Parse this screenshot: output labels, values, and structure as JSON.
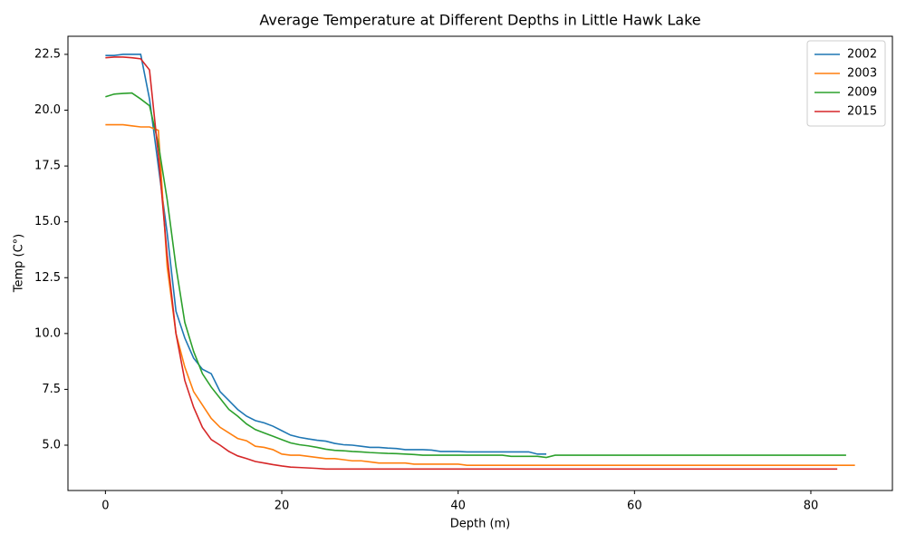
{
  "chart_data": {
    "type": "line",
    "title": "Average Temperature at Different Depths in Little Hawk Lake",
    "x_label": "Depth (m)",
    "y_label": "Temp (C°)",
    "xlim": [
      -4.25,
      89.25
    ],
    "ylim": [
      2.97,
      23.31
    ],
    "xticks": [
      0,
      20,
      40,
      60,
      80
    ],
    "yticks": [
      {
        "value": 5,
        "label": "5.0"
      },
      7.5,
      {
        "value": 10,
        "label": "10.0"
      },
      12.5,
      {
        "value": 15,
        "label": "15.0"
      },
      17.5,
      {
        "value": 20,
        "label": "20.0"
      },
      22.5
    ],
    "grid": false,
    "legend": "upper right",
    "series": [
      {
        "name": "2002",
        "color": "#1f77b4",
        "x_start": 0,
        "values": [
          22.45,
          22.45,
          22.5,
          22.5,
          22.5,
          20.5,
          17.5,
          14.5,
          11,
          9.8,
          8.9,
          8.4,
          8.2,
          7.4,
          7.0,
          6.6,
          6.3,
          6.1,
          6.0,
          5.85,
          5.65,
          5.45,
          5.35,
          5.28,
          5.22,
          5.18,
          5.08,
          5.02,
          5.0,
          4.95,
          4.9,
          4.9,
          4.87,
          4.85,
          4.8,
          4.8,
          4.8,
          4.78,
          4.72,
          4.72,
          4.72,
          4.7,
          4.7,
          4.7,
          4.7,
          4.7,
          4.7,
          4.7,
          4.7,
          4.6,
          4.6
        ]
      },
      {
        "name": "2003",
        "color": "#ff7f0e",
        "x_start": 0,
        "values": [
          19.35,
          19.35,
          19.35,
          19.3,
          19.25,
          19.25,
          19.1,
          13,
          10,
          8.5,
          7.4,
          6.8,
          6.2,
          5.8,
          5.55,
          5.3,
          5.2,
          4.95,
          4.9,
          4.8,
          4.6,
          4.55,
          4.55,
          4.5,
          4.45,
          4.4,
          4.4,
          4.35,
          4.3,
          4.3,
          4.25,
          4.2,
          4.2,
          4.2,
          4.2,
          4.15,
          4.15,
          4.15,
          4.15,
          4.15,
          4.15,
          4.1,
          4.1,
          4.1,
          4.1,
          4.1,
          4.1,
          4.1,
          4.1,
          4.1,
          4.1,
          4.1,
          4.1,
          4.1,
          4.1,
          4.1,
          4.1,
          4.1,
          4.1,
          4.1,
          4.1,
          4.1,
          4.1,
          4.1,
          4.1,
          4.1,
          4.1,
          4.1,
          4.1,
          4.1,
          4.1,
          4.1,
          4.1,
          4.1,
          4.1,
          4.1,
          4.1,
          4.1,
          4.1,
          4.1,
          4.1,
          4.1,
          4.1,
          4.1,
          4.1,
          4.1
        ]
      },
      {
        "name": "2009",
        "color": "#2ca02c",
        "x_start": 0,
        "values": [
          20.6,
          20.72,
          20.75,
          20.77,
          20.5,
          20.2,
          18.5,
          16,
          13,
          10.5,
          9.2,
          8.2,
          7.6,
          7.1,
          6.6,
          6.3,
          5.95,
          5.7,
          5.55,
          5.4,
          5.25,
          5.1,
          5.02,
          4.97,
          4.9,
          4.82,
          4.77,
          4.75,
          4.72,
          4.7,
          4.67,
          4.65,
          4.63,
          4.62,
          4.6,
          4.58,
          4.55,
          4.55,
          4.55,
          4.55,
          4.55,
          4.55,
          4.55,
          4.55,
          4.55,
          4.55,
          4.5,
          4.5,
          4.5,
          4.5,
          4.45,
          4.55,
          4.55,
          4.55,
          4.55,
          4.55,
          4.55,
          4.55,
          4.55,
          4.55,
          4.55,
          4.55,
          4.55,
          4.55,
          4.55,
          4.55,
          4.55,
          4.55,
          4.55,
          4.55,
          4.55,
          4.55,
          4.55,
          4.55,
          4.55,
          4.55,
          4.55,
          4.55,
          4.55,
          4.55,
          4.55,
          4.55,
          4.55,
          4.55,
          4.55
        ]
      },
      {
        "name": "2015",
        "color": "#d62728",
        "x_start": 0,
        "values": [
          22.35,
          22.38,
          22.38,
          22.35,
          22.3,
          21.8,
          18,
          13.5,
          10,
          7.9,
          6.7,
          5.8,
          5.25,
          5.0,
          4.72,
          4.52,
          4.4,
          4.27,
          4.2,
          4.13,
          4.07,
          4.02,
          4.0,
          3.98,
          3.96,
          3.93,
          3.93,
          3.93,
          3.93,
          3.93,
          3.93,
          3.93,
          3.93,
          3.93,
          3.93,
          3.93,
          3.93,
          3.93,
          3.93,
          3.93,
          3.93,
          3.93,
          3.93,
          3.93,
          3.93,
          3.93,
          3.93,
          3.93,
          3.93,
          3.93,
          3.93,
          3.93,
          3.93,
          3.93,
          3.93,
          3.93,
          3.93,
          3.93,
          3.93,
          3.93,
          3.93,
          3.93,
          3.93,
          3.93,
          3.93,
          3.93,
          3.93,
          3.93,
          3.93,
          3.93,
          3.93,
          3.93,
          3.93,
          3.93,
          3.93,
          3.93,
          3.93,
          3.93,
          3.93,
          3.93,
          3.93,
          3.93,
          3.93,
          3.93
        ]
      }
    ]
  }
}
